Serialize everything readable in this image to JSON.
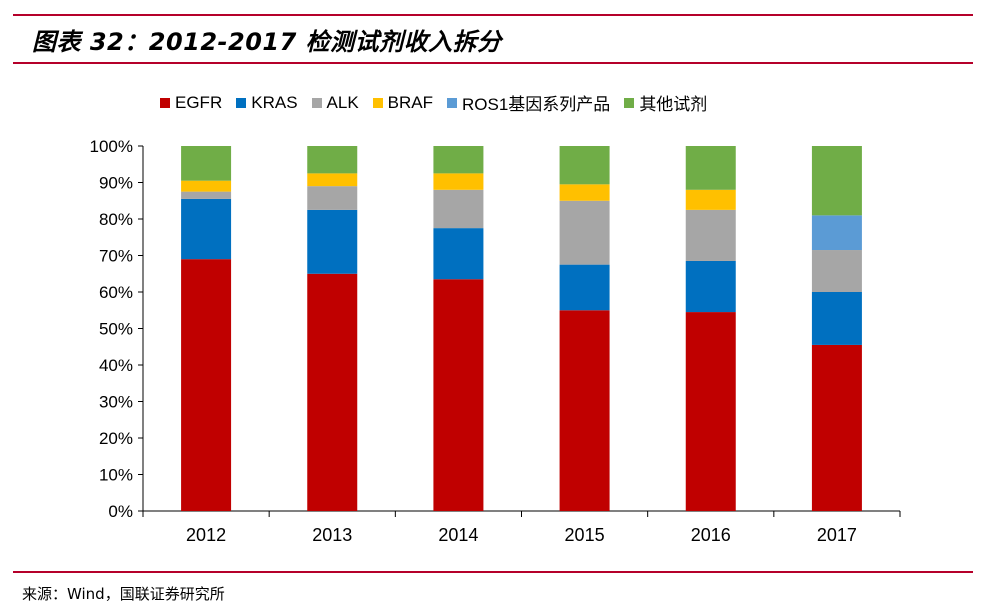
{
  "figure": {
    "title": "图表 32：2012-2017 检测试剂收入拆分",
    "source": "来源：Wind，国联证券研究所"
  },
  "colors": {
    "rule": "#b5002a",
    "EGFR": "#c00000",
    "KRAS": "#0070c0",
    "ALK": "#a6a6a6",
    "BRAF": "#ffc000",
    "ROS1": "#5b9bd5",
    "other": "#70ad47"
  },
  "chart_data": {
    "type": "bar",
    "stacked": true,
    "title": "",
    "xlabel": "",
    "ylabel": "",
    "ylim": [
      0,
      100
    ],
    "y_ticks": [
      "0%",
      "10%",
      "20%",
      "30%",
      "40%",
      "50%",
      "60%",
      "70%",
      "80%",
      "90%",
      "100%"
    ],
    "categories": [
      "2012",
      "2013",
      "2014",
      "2015",
      "2016",
      "2017"
    ],
    "series": [
      {
        "name": "EGFR",
        "color_key": "EGFR",
        "values": [
          69,
          65,
          63.5,
          55,
          54.5,
          45.5
        ]
      },
      {
        "name": "KRAS",
        "color_key": "KRAS",
        "values": [
          16.5,
          17.5,
          14,
          12.5,
          14,
          14.5
        ]
      },
      {
        "name": "ALK",
        "color_key": "ALK",
        "values": [
          2,
          6.5,
          10.5,
          17.5,
          14,
          11.5
        ]
      },
      {
        "name": "BRAF",
        "color_key": "BRAF",
        "values": [
          3,
          3.5,
          4.5,
          4.5,
          5.5,
          0
        ]
      },
      {
        "name": "ROS1基因系列产品",
        "color_key": "ROS1",
        "values": [
          0,
          0,
          0,
          0,
          0,
          9.5
        ]
      },
      {
        "name": "其他试剂",
        "color_key": "other",
        "values": [
          9.5,
          7.5,
          7.5,
          10.5,
          12,
          19
        ]
      }
    ],
    "legend_position": "top"
  }
}
